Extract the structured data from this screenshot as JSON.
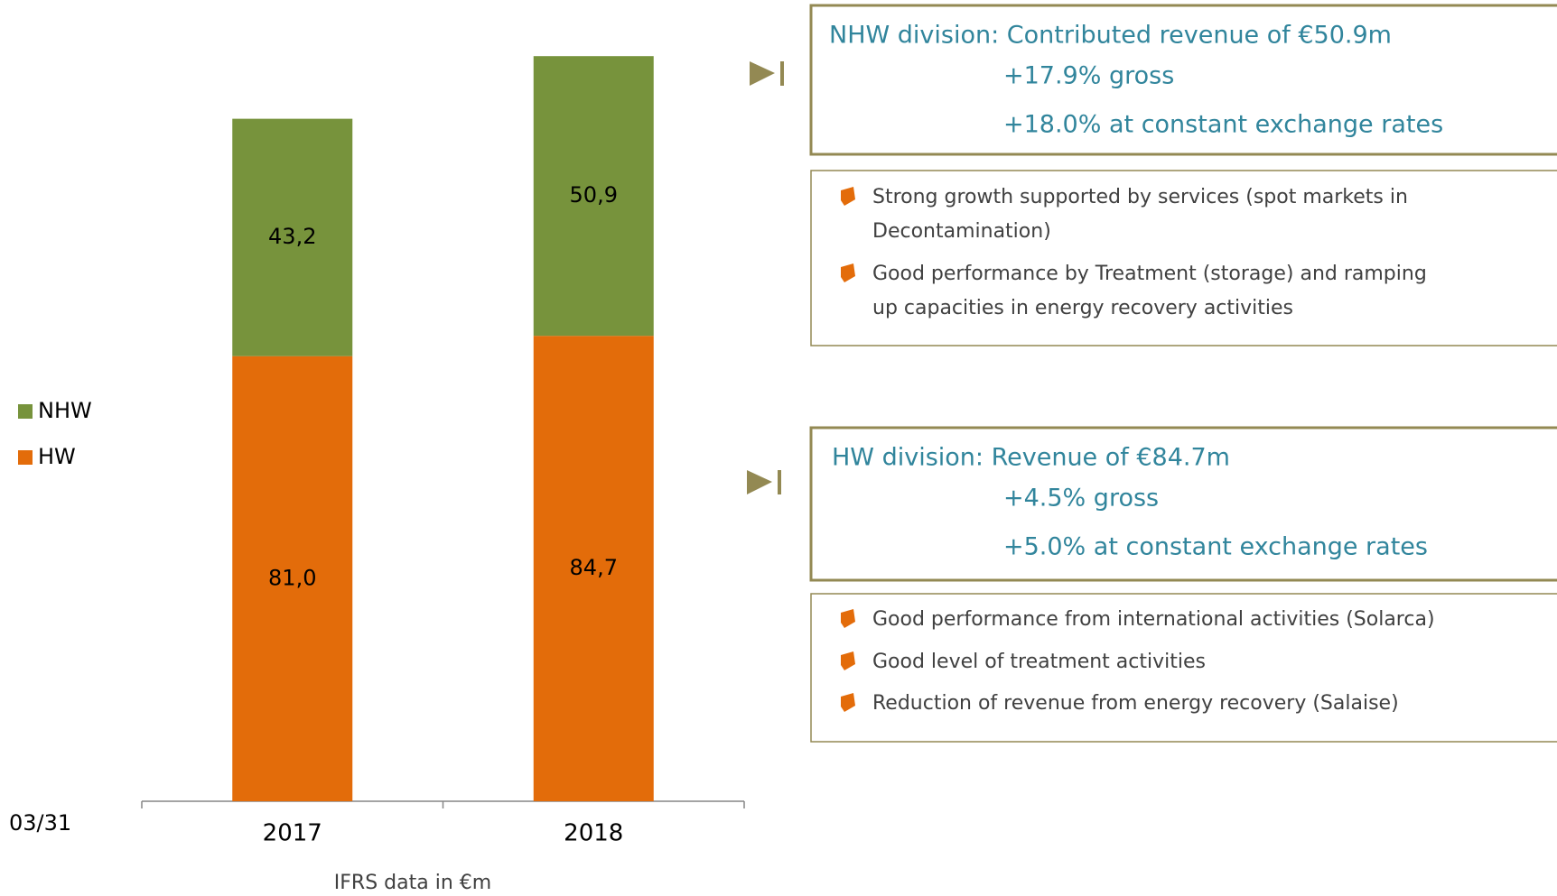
{
  "chart_data": {
    "type": "stacked_bar",
    "categories": [
      "2017",
      "2018"
    ],
    "series": [
      {
        "name": "HW",
        "color": "#E36C0A",
        "values": [
          81.0,
          84.7
        ],
        "value_labels": [
          "81,0",
          "84,7"
        ]
      },
      {
        "name": "NHW",
        "color": "#77933C",
        "values": [
          43.2,
          50.9
        ],
        "value_labels": [
          "43,2",
          "50,9"
        ]
      }
    ],
    "xlabel": "IFRS data in €m"
  },
  "page_number": "03/31",
  "panels": [
    {
      "heading": "NHW division: Contributed revenue of €50.9m",
      "lines": [
        "+17.9% gross",
        "+18.0% at constant exchange rates"
      ],
      "bullets": [
        "Strong growth supported by services (spot markets in",
        "Decontamination)",
        "Good performance by Treatment (storage) and ramping",
        "up capacities in energy recovery activities"
      ]
    },
    {
      "heading": "HW division: Revenue of €84.7m",
      "lines": [
        "+4.5% gross",
        "+5.0% at constant exchange rates"
      ],
      "bullets": [
        "Good performance from international activities (Solarca)",
        "Good level of treatment activities",
        "Reduction of revenue from energy recovery (Salaise)"
      ]
    }
  ]
}
